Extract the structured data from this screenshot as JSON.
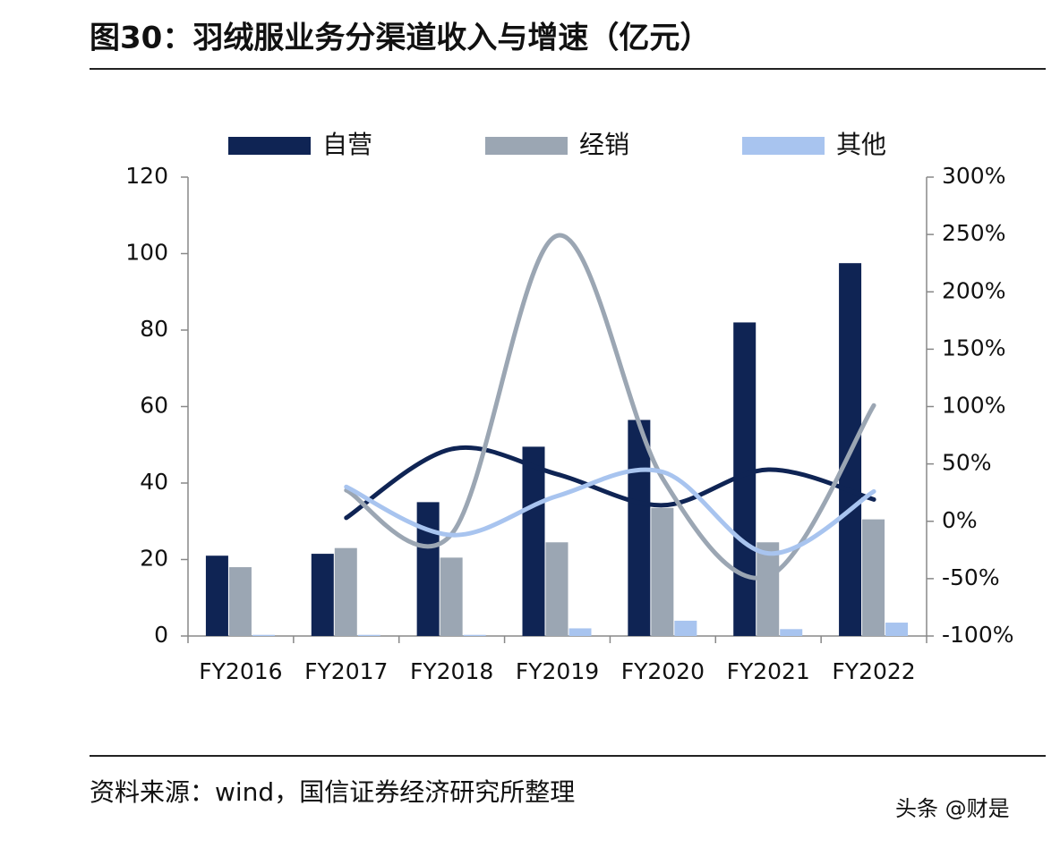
{
  "chart_data": {
    "type": "bar_line",
    "title": "图30：羽绒服业务分渠道收入与增速（亿元）",
    "source": "资料来源：wind，国信证券经济研究所整理",
    "watermark": "头条 @财是",
    "categories": [
      "FY2016",
      "FY2017",
      "FY2018",
      "FY2019",
      "FY2020",
      "FY2021",
      "FY2022"
    ],
    "series": [
      {
        "name": "自营",
        "color": "#0f2454",
        "values": [
          21,
          21.5,
          35,
          49.5,
          56.5,
          82,
          97.5
        ]
      },
      {
        "name": "经销",
        "color": "#9ba6b3",
        "values": [
          18,
          23,
          20.5,
          24.5,
          33.5,
          24.5,
          30.5
        ]
      },
      {
        "name": "其他",
        "color": "#a8c4ef",
        "values": [
          0.3,
          0.3,
          0.3,
          2,
          4,
          1.8,
          3.5
        ]
      }
    ],
    "lines": [
      {
        "color": "#0f2454",
        "axis": "y2",
        "values": [
          null,
          3,
          63,
          41,
          14,
          45,
          19
        ]
      },
      {
        "color": "#9ba6b3",
        "axis": "y2",
        "values": [
          null,
          27,
          -11,
          249,
          37,
          -48,
          101
        ]
      },
      {
        "color": "#a8c4ef",
        "axis": "y2",
        "values": [
          null,
          30,
          -12,
          22,
          43,
          -28,
          26
        ]
      }
    ],
    "ylim": [
      0,
      120
    ],
    "yticks": [
      0,
      20,
      40,
      60,
      80,
      100,
      120
    ],
    "y2lim": [
      -100,
      300
    ],
    "y2ticks": [
      {
        "value": -100,
        "label": "-100%"
      },
      {
        "value": -50,
        "label": "-50%"
      },
      {
        "value": 0,
        "label": "0%"
      },
      {
        "value": 50,
        "label": "50%"
      },
      {
        "value": 100,
        "label": "100%"
      },
      {
        "value": 150,
        "label": "150%"
      },
      {
        "value": 200,
        "label": "200%"
      },
      {
        "value": 250,
        "label": "250%"
      },
      {
        "value": 300,
        "label": "300%"
      }
    ]
  }
}
